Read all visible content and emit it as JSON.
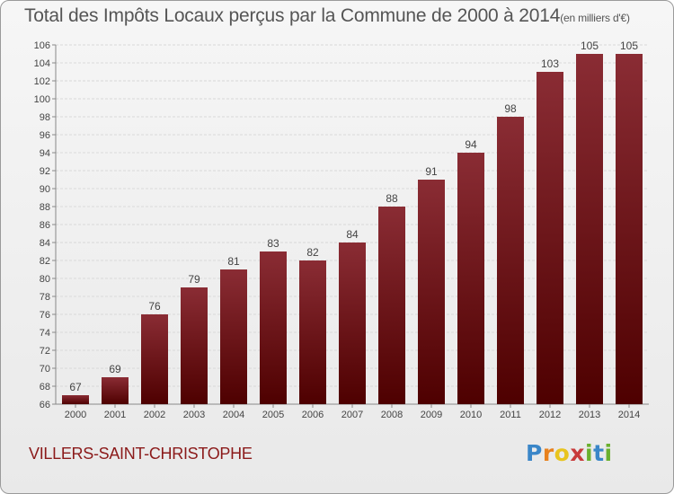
{
  "title": "Total des Impôts Locaux perçus par la Commune de 2000 à 2014",
  "title_unit": "(en milliers d'€)",
  "commune": "VILLERS-SAINT-CHRISTOPHE",
  "brand": [
    "P",
    "r",
    "o",
    "x",
    "i",
    "t",
    "i"
  ],
  "colors": {
    "bar_top": "#8a2c34",
    "bar_bottom": "#4e0000",
    "grid": "#d9d9d9",
    "axis_text": "#444444",
    "commune": "#8b1a1a"
  },
  "chart_data": {
    "type": "bar",
    "title": "Total des Impôts Locaux perçus par la Commune de 2000 à 2014 (en milliers d'€)",
    "xlabel": "",
    "ylabel": "",
    "ylim": [
      66,
      106
    ],
    "ytick_step": 2,
    "grid": true,
    "categories": [
      "2000",
      "2001",
      "2002",
      "2003",
      "2004",
      "2005",
      "2006",
      "2007",
      "2008",
      "2009",
      "2010",
      "2011",
      "2012",
      "2013",
      "2014"
    ],
    "values": [
      67,
      69,
      76,
      79,
      81,
      83,
      82,
      84,
      88,
      91,
      94,
      98,
      103,
      105,
      105
    ]
  }
}
